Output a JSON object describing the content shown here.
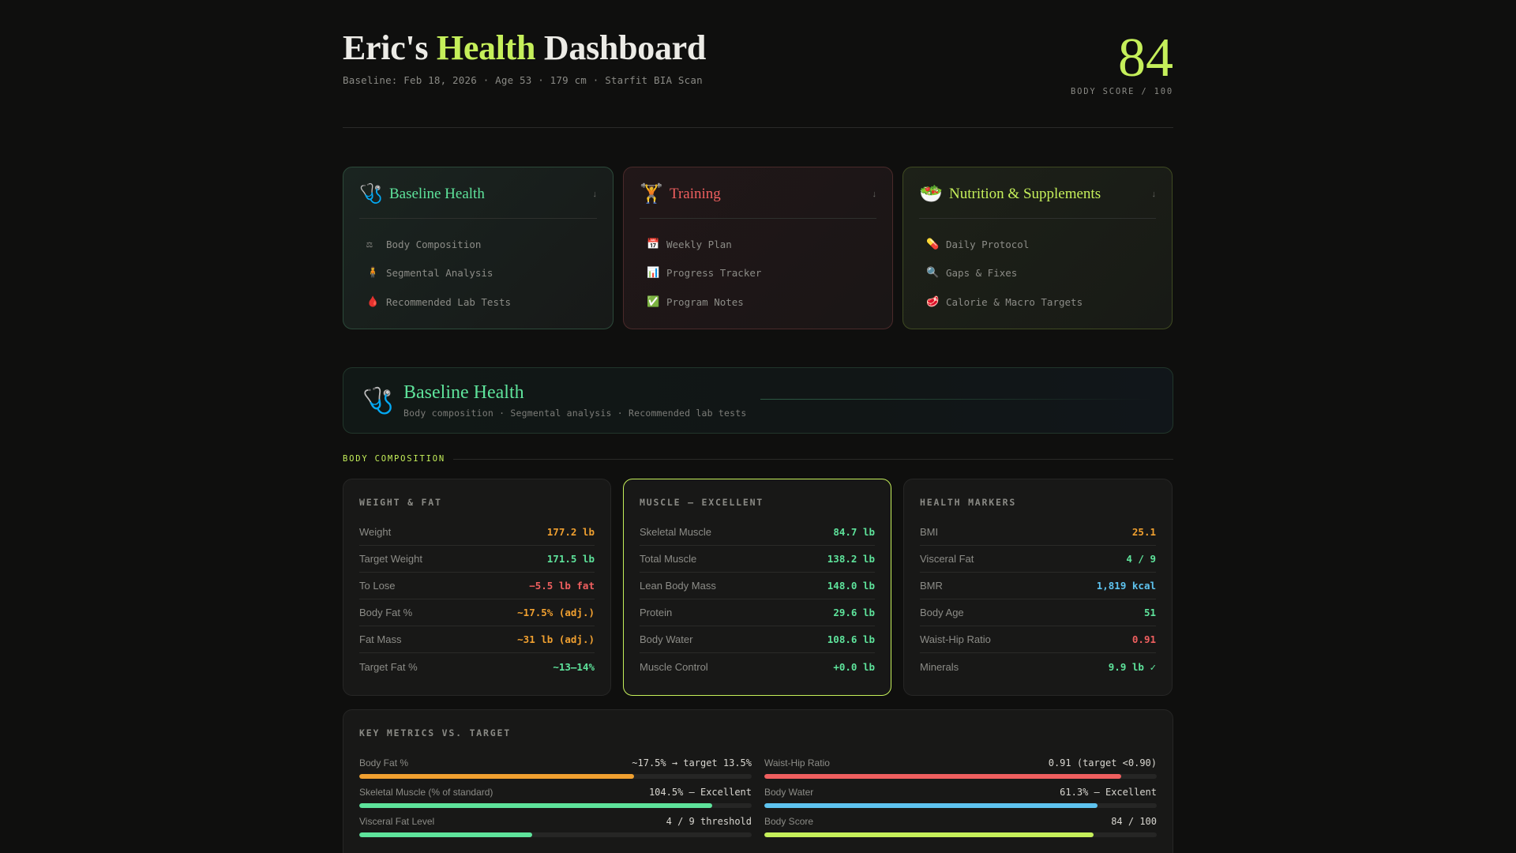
{
  "header": {
    "title_part1": "Eric's ",
    "title_accent": "Health",
    "title_part2": " Dashboard",
    "subtitle": "Baseline: Feb 18, 2026 · Age 53 · 179 cm · Starfit BIA Scan",
    "score": "84",
    "score_label": "BODY SCORE / 100"
  },
  "nav_cards": [
    {
      "icon": "🩺",
      "icon_name": "stethoscope-icon",
      "title": "Baseline Health",
      "arrow": "↓",
      "theme": "green",
      "items": [
        {
          "icon": "⚖",
          "icon_name": "scale-icon",
          "label": "Body Composition"
        },
        {
          "icon": "🧍",
          "icon_name": "person-standing-icon",
          "label": "Segmental Analysis"
        },
        {
          "icon": "🩸",
          "icon_name": "blood-drop-icon",
          "label": "Recommended Lab Tests"
        }
      ]
    },
    {
      "icon": "🏋️",
      "icon_name": "weightlifter-icon",
      "title": "Training",
      "arrow": "↓",
      "theme": "red",
      "items": [
        {
          "icon": "📅",
          "icon_name": "calendar-icon",
          "label": "Weekly Plan"
        },
        {
          "icon": "📊",
          "icon_name": "bar-chart-icon",
          "label": "Progress Tracker"
        },
        {
          "icon": "✅",
          "icon_name": "check-mark-icon",
          "label": "Program Notes"
        }
      ]
    },
    {
      "icon": "🥗",
      "icon_name": "salad-icon",
      "title": "Nutrition & Supplements",
      "arrow": "↓",
      "theme": "lime",
      "items": [
        {
          "icon": "💊",
          "icon_name": "pill-icon",
          "label": "Daily Protocol"
        },
        {
          "icon": "🔍",
          "icon_name": "magnifier-icon",
          "label": "Gaps & Fixes"
        },
        {
          "icon": "🥩",
          "icon_name": "meat-icon",
          "label": "Calorie & Macro Targets"
        }
      ]
    }
  ],
  "hero": {
    "icon": "🩺",
    "title": "Baseline Health",
    "subtitle": "Body composition · Segmental analysis · Recommended lab tests"
  },
  "section_label": "BODY COMPOSITION",
  "stat_cards": [
    {
      "title": "WEIGHT & FAT",
      "highlight": false,
      "rows": [
        {
          "label": "Weight",
          "value": "177.2 lb",
          "color": "orange"
        },
        {
          "label": "Target Weight",
          "value": "171.5 lb",
          "color": "green"
        },
        {
          "label": "To Lose",
          "value": "−5.5 lb fat",
          "color": "red"
        },
        {
          "label": "Body Fat %",
          "value": "~17.5% (adj.)",
          "color": "orange"
        },
        {
          "label": "Fat Mass",
          "value": "~31 lb (adj.)",
          "color": "orange"
        },
        {
          "label": "Target Fat %",
          "value": "~13–14%",
          "color": "green"
        }
      ]
    },
    {
      "title": "MUSCLE — EXCELLENT",
      "highlight": true,
      "rows": [
        {
          "label": "Skeletal Muscle",
          "value": "84.7 lb",
          "color": "green"
        },
        {
          "label": "Total Muscle",
          "value": "138.2 lb",
          "color": "green"
        },
        {
          "label": "Lean Body Mass",
          "value": "148.0 lb",
          "color": "green"
        },
        {
          "label": "Protein",
          "value": "29.6 lb",
          "color": "green"
        },
        {
          "label": "Body Water",
          "value": "108.6 lb",
          "color": "green"
        },
        {
          "label": "Muscle Control",
          "value": "+0.0 lb",
          "color": "green"
        }
      ]
    },
    {
      "title": "HEALTH MARKERS",
      "highlight": false,
      "rows": [
        {
          "label": "BMI",
          "value": "25.1",
          "color": "orange"
        },
        {
          "label": "Visceral Fat",
          "value": "4 / 9",
          "color": "green"
        },
        {
          "label": "BMR",
          "value": "1,819 kcal",
          "color": "blue"
        },
        {
          "label": "Body Age",
          "value": "51",
          "color": "green"
        },
        {
          "label": "Waist-Hip Ratio",
          "value": "0.91",
          "color": "red"
        },
        {
          "label": "Minerals",
          "value": "9.9 lb ✓",
          "color": "green"
        }
      ]
    }
  ],
  "key_metrics": {
    "title": "KEY METRICS VS. TARGET",
    "items": [
      {
        "label": "Body Fat %",
        "value": "~17.5% → target 13.5%",
        "percent": 70,
        "color": "#f0a030"
      },
      {
        "label": "Waist-Hip Ratio",
        "value": "0.91 (target <0.90)",
        "percent": 91,
        "color": "#ef5f5f"
      },
      {
        "label": "Skeletal Muscle (% of standard)",
        "value": "104.5% — Excellent",
        "percent": 90,
        "color": "#5ee39b"
      },
      {
        "label": "Body Water",
        "value": "61.3% — Excellent",
        "percent": 85,
        "color": "#5ec3ef"
      },
      {
        "label": "Visceral Fat Level",
        "value": "4 / 9 threshold",
        "percent": 44,
        "color": "#5ee39b"
      },
      {
        "label": "Body Score",
        "value": "84 / 100",
        "percent": 84,
        "color": "#c5ef5a"
      }
    ]
  },
  "colors": {
    "accent": "#c5ef5a",
    "green": "#5ee39b",
    "red": "#ef5f5f",
    "orange": "#f0a030",
    "blue": "#5ec3ef",
    "background": "#0f0f0e"
  }
}
